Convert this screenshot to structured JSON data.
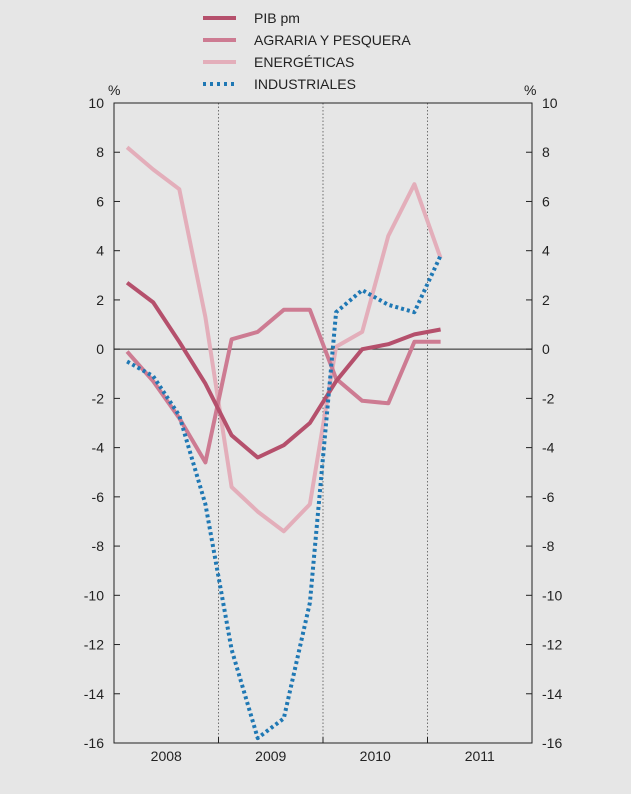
{
  "chart_data": {
    "type": "line",
    "title": "",
    "x": [
      "2008-Q1",
      "2008-Q2",
      "2008-Q3",
      "2008-Q4",
      "2009-Q1",
      "2009-Q2",
      "2009-Q3",
      "2009-Q4",
      "2010-Q1",
      "2010-Q2",
      "2010-Q3",
      "2010-Q4",
      "2011-Q1"
    ],
    "years": [
      "2008",
      "2009",
      "2010",
      "2011"
    ],
    "y_unit_left": "%",
    "y_unit_right": "%",
    "ylim": [
      -16,
      10
    ],
    "yticks": [
      10,
      8,
      6,
      4,
      2,
      0,
      -2,
      -4,
      -6,
      -8,
      -10,
      -12,
      -14,
      -16
    ],
    "grid": false,
    "legend_placement": "top-center",
    "series": [
      {
        "name": "PIB pm",
        "color": "#b5506c",
        "style": "solid",
        "values": [
          2.7,
          1.9,
          0.3,
          -1.4,
          -3.5,
          -4.4,
          -3.9,
          -3.0,
          -1.3,
          0.0,
          0.2,
          0.6,
          0.8
        ]
      },
      {
        "name": "AGRARIA Y PESQUERA",
        "color": "#cd7b92",
        "style": "solid",
        "values": [
          -0.1,
          -1.3,
          -2.8,
          -4.6,
          0.4,
          0.7,
          1.6,
          1.6,
          -1.2,
          -2.1,
          -2.2,
          0.3,
          0.3
        ]
      },
      {
        "name": "ENERGÉTICAS",
        "color": "#e3aeba",
        "style": "solid",
        "values": [
          8.2,
          7.3,
          6.5,
          1.3,
          -5.6,
          -6.6,
          -7.4,
          -6.3,
          0.1,
          0.7,
          4.6,
          6.7,
          3.7
        ]
      },
      {
        "name": "INDUSTRIALES",
        "color": "#1f78b4",
        "style": "dotted",
        "values": [
          -0.5,
          -1.1,
          -2.7,
          -6.3,
          -12.2,
          -15.8,
          -15.0,
          -10.3,
          1.5,
          2.4,
          1.8,
          1.5,
          3.8
        ]
      }
    ]
  }
}
